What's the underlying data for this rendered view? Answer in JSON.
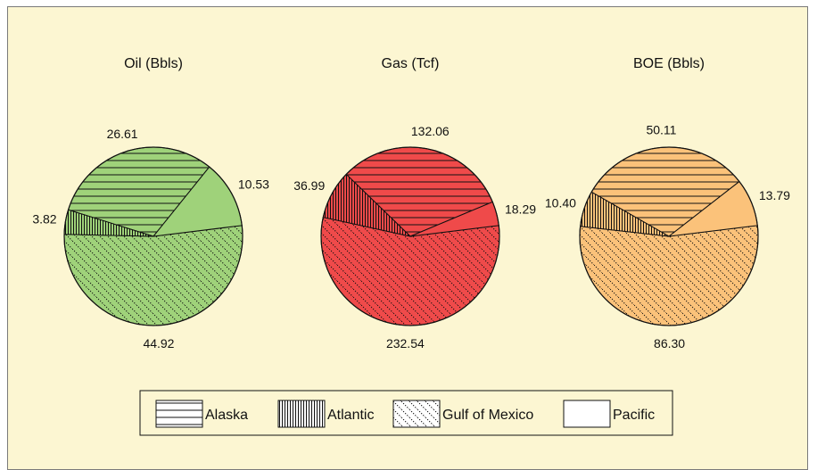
{
  "chart_data": [
    {
      "type": "pie",
      "title": "Oil (Bbls)",
      "labels": [
        "Alaska",
        "Atlantic",
        "Gulf of Mexico",
        "Pacific"
      ],
      "values": [
        26.61,
        3.82,
        44.92,
        10.53
      ],
      "value_labels": [
        "26.61",
        "3.82",
        "44.92",
        "10.53"
      ],
      "color": "#9fd27a"
    },
    {
      "type": "pie",
      "title": "Gas (Tcf)",
      "labels": [
        "Alaska",
        "Atlantic",
        "Gulf of Mexico",
        "Pacific"
      ],
      "values": [
        132.06,
        36.99,
        232.54,
        18.29
      ],
      "value_labels": [
        "132.06",
        "36.99",
        "232.54",
        "18.29"
      ],
      "color": "#ef4a4a"
    },
    {
      "type": "pie",
      "title": "BOE (Bbls)",
      "labels": [
        "Alaska",
        "Atlantic",
        "Gulf of Mexico",
        "Pacific"
      ],
      "values": [
        50.11,
        10.4,
        86.3,
        13.79
      ],
      "value_labels": [
        "50.11",
        "10.40",
        "86.30",
        "13.79"
      ],
      "color": "#fbc27a"
    }
  ],
  "legend": {
    "placement": "bottom",
    "items": [
      {
        "label": "Alaska",
        "pattern": "horizontal-lines"
      },
      {
        "label": "Atlantic",
        "pattern": "vertical-lines"
      },
      {
        "label": "Gulf of Mexico",
        "pattern": "diagonal-dots"
      },
      {
        "label": "Pacific",
        "pattern": "solid"
      }
    ]
  },
  "colors": {
    "background": "#fcf6d2",
    "outline": "#111111"
  }
}
